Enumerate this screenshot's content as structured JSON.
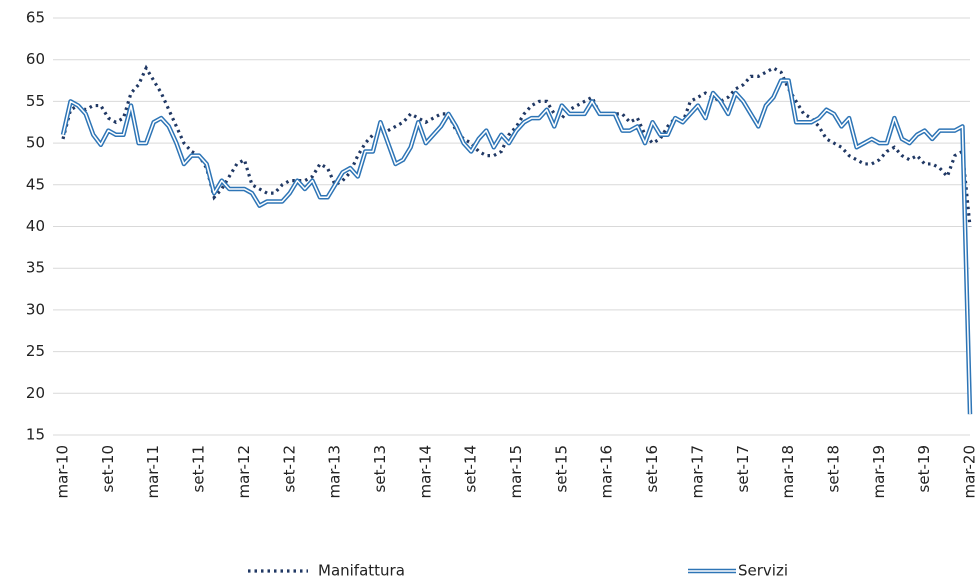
{
  "chart_data": {
    "type": "line",
    "categories": [
      "mar-10",
      null,
      null,
      null,
      null,
      null,
      "set-10",
      null,
      null,
      null,
      null,
      null,
      "mar-11",
      null,
      null,
      null,
      null,
      null,
      "set-11",
      null,
      null,
      null,
      null,
      null,
      "mar-12",
      null,
      null,
      null,
      null,
      null,
      "set-12",
      null,
      null,
      null,
      null,
      null,
      "mar-13",
      null,
      null,
      null,
      null,
      null,
      "set-13",
      null,
      null,
      null,
      null,
      null,
      "mar-14",
      null,
      null,
      null,
      null,
      null,
      "set-14",
      null,
      null,
      null,
      null,
      null,
      "mar-15",
      null,
      null,
      null,
      null,
      null,
      "set-15",
      null,
      null,
      null,
      null,
      null,
      "mar-16",
      null,
      null,
      null,
      null,
      null,
      "set-16",
      null,
      null,
      null,
      null,
      null,
      "mar-17",
      null,
      null,
      null,
      null,
      null,
      "set-17",
      null,
      null,
      null,
      null,
      null,
      "mar-18",
      null,
      null,
      null,
      null,
      null,
      "set-18",
      null,
      null,
      null,
      null,
      null,
      "mar-19",
      null,
      null,
      null,
      null,
      null,
      "set-19",
      null,
      null,
      null,
      null,
      null,
      "mar-20"
    ],
    "series": [
      {
        "name": "Manifattura",
        "color": "#203864",
        "style": "dotted",
        "values": [
          50.5,
          54,
          54.5,
          54,
          54.5,
          54.5,
          53,
          52.5,
          53,
          56,
          57,
          59,
          57.5,
          56,
          54,
          52,
          50,
          49,
          48.5,
          47,
          43.5,
          44.5,
          46,
          47.5,
          48,
          45,
          44.5,
          44,
          44,
          45,
          45.5,
          45.5,
          45.5,
          46,
          47.5,
          47,
          45,
          45.5,
          46.5,
          48.5,
          50,
          51,
          51,
          51.5,
          52,
          52.5,
          53.5,
          53,
          52.5,
          53,
          53.5,
          53.5,
          51.5,
          50.5,
          50,
          49,
          48.5,
          48.5,
          49,
          51,
          52,
          53.5,
          54.5,
          55,
          55,
          53.5,
          53,
          54,
          54.5,
          55,
          55.5,
          53.5,
          53.5,
          53.5,
          53.5,
          52.5,
          53,
          51,
          50,
          50.5,
          52,
          53,
          52.5,
          55,
          55.5,
          56,
          55.5,
          55,
          55.5,
          56.5,
          57,
          58,
          58,
          58.5,
          59,
          58.5,
          56.5,
          55,
          53.5,
          53,
          52,
          50.5,
          50,
          49.5,
          48.5,
          48,
          47.5,
          47.5,
          48,
          49,
          49.5,
          48.5,
          48,
          48.5,
          47.5,
          47.5,
          47,
          46,
          48.5,
          49,
          40
        ]
      },
      {
        "name": "Servizi",
        "color": "#2e75b6",
        "style": "double",
        "values": [
          51,
          55,
          54.5,
          53.5,
          51,
          49.8,
          51.5,
          51,
          51,
          54.5,
          50,
          50,
          52.5,
          53,
          52,
          50,
          47.5,
          48.5,
          48.5,
          47.5,
          44,
          45.5,
          44.5,
          44.5,
          44.5,
          44,
          42.5,
          43,
          43,
          43,
          44,
          45.5,
          44.5,
          45.5,
          43.5,
          43.5,
          45,
          46.5,
          47,
          46,
          49,
          49,
          52.5,
          50,
          47.5,
          48,
          49.5,
          52.5,
          50,
          51,
          52,
          53.5,
          52,
          50,
          49,
          50.5,
          51.5,
          49.5,
          51,
          50,
          51.5,
          52.5,
          53,
          53,
          54,
          52,
          54.5,
          53.5,
          53.5,
          53.5,
          55,
          53.5,
          53.5,
          53.5,
          51.5,
          51.5,
          52,
          50,
          52.5,
          51,
          51,
          53,
          52.5,
          53.5,
          54.5,
          53,
          56,
          55,
          53.5,
          56,
          55,
          53.5,
          52,
          54.5,
          55.5,
          57.5,
          57.5,
          52.5,
          52.5,
          52.5,
          53,
          54,
          53.5,
          52,
          53,
          49.5,
          50,
          50.5,
          50,
          50,
          53,
          50.5,
          50,
          51,
          51.5,
          50.5,
          51.5,
          51.5,
          51.5,
          52,
          17.5
        ]
      }
    ],
    "ylim": [
      15,
      65
    ],
    "yticks": [
      15,
      20,
      25,
      30,
      35,
      40,
      45,
      50,
      55,
      60,
      65
    ],
    "grid": true
  }
}
